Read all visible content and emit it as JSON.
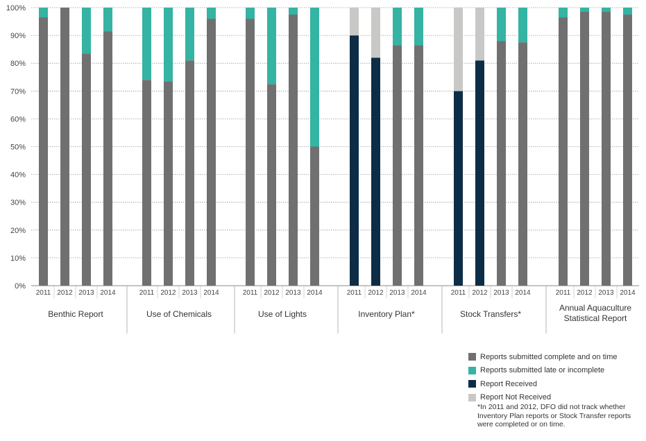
{
  "chart_data": {
    "type": "bar",
    "stacked": true,
    "title": "",
    "xlabel": "",
    "ylabel": "",
    "ylim": [
      0,
      100
    ],
    "yticks": [
      "0%",
      "10%",
      "20%",
      "30%",
      "40%",
      "50%",
      "60%",
      "70%",
      "80%",
      "90%",
      "100%"
    ],
    "grid": true,
    "legend_position": "bottom-right",
    "groups": [
      {
        "name": "Benthic Report",
        "name_lines": [
          "Benthic Report"
        ],
        "years": [
          "2011",
          "2012",
          "2013",
          "2014"
        ],
        "stacks": [
          [
            {
              "series": "complete",
              "value": 96.5
            },
            {
              "series": "late",
              "value": 3.5
            }
          ],
          [
            {
              "series": "complete",
              "value": 100
            }
          ],
          [
            {
              "series": "complete",
              "value": 83.5
            },
            {
              "series": "late",
              "value": 16.5
            }
          ],
          [
            {
              "series": "complete",
              "value": 91.5
            },
            {
              "series": "late",
              "value": 8.5
            }
          ]
        ]
      },
      {
        "name": "Use of Chemicals",
        "name_lines": [
          "Use of Chemicals"
        ],
        "years": [
          "2011",
          "2012",
          "2013",
          "2014"
        ],
        "stacks": [
          [
            {
              "series": "complete",
              "value": 74
            },
            {
              "series": "late",
              "value": 26
            }
          ],
          [
            {
              "series": "complete",
              "value": 73.5
            },
            {
              "series": "late",
              "value": 26.5
            }
          ],
          [
            {
              "series": "complete",
              "value": 81
            },
            {
              "series": "late",
              "value": 19
            }
          ],
          [
            {
              "series": "complete",
              "value": 96
            },
            {
              "series": "late",
              "value": 4
            }
          ]
        ]
      },
      {
        "name": "Use of Lights",
        "name_lines": [
          "Use of Lights"
        ],
        "years": [
          "2011",
          "2012",
          "2013",
          "2014"
        ],
        "stacks": [
          [
            {
              "series": "complete",
              "value": 96
            },
            {
              "series": "late",
              "value": 4
            }
          ],
          [
            {
              "series": "complete",
              "value": 72.5
            },
            {
              "series": "late",
              "value": 27.5
            }
          ],
          [
            {
              "series": "complete",
              "value": 97.5
            },
            {
              "series": "late",
              "value": 2.5
            }
          ],
          [
            {
              "series": "complete",
              "value": 50
            },
            {
              "series": "late",
              "value": 50
            }
          ]
        ]
      },
      {
        "name": "Inventory Plan*",
        "name_lines": [
          "Inventory Plan*"
        ],
        "years": [
          "2011",
          "2012",
          "2013",
          "2014"
        ],
        "stacks": [
          [
            {
              "series": "received",
              "value": 90
            },
            {
              "series": "not_received",
              "value": 10
            }
          ],
          [
            {
              "series": "received",
              "value": 82
            },
            {
              "series": "not_received",
              "value": 18
            }
          ],
          [
            {
              "series": "complete",
              "value": 86.5
            },
            {
              "series": "late",
              "value": 13.5
            }
          ],
          [
            {
              "series": "complete",
              "value": 86.5
            },
            {
              "series": "late",
              "value": 13.5
            }
          ]
        ]
      },
      {
        "name": "Stock Transfers*",
        "name_lines": [
          "Stock Transfers*"
        ],
        "years": [
          "2011",
          "2012",
          "2013",
          "2014"
        ],
        "stacks": [
          [
            {
              "series": "received",
              "value": 70
            },
            {
              "series": "not_received",
              "value": 30
            }
          ],
          [
            {
              "series": "received",
              "value": 81
            },
            {
              "series": "not_received",
              "value": 19
            }
          ],
          [
            {
              "series": "complete",
              "value": 88
            },
            {
              "series": "late",
              "value": 12
            }
          ],
          [
            {
              "series": "complete",
              "value": 87.5
            },
            {
              "series": "late",
              "value": 12.5
            }
          ]
        ]
      },
      {
        "name": "Annual Aquaculture Statistical Report",
        "name_lines": [
          "Annual Aquaculture",
          "Statistical Report"
        ],
        "years": [
          "2011",
          "2012",
          "2013",
          "2014"
        ],
        "stacks": [
          [
            {
              "series": "complete",
              "value": 96.5
            },
            {
              "series": "late",
              "value": 3.5
            }
          ],
          [
            {
              "series": "complete",
              "value": 98.5
            },
            {
              "series": "late",
              "value": 1.5
            }
          ],
          [
            {
              "series": "complete",
              "value": 98.5
            },
            {
              "series": "late",
              "value": 1.5
            }
          ],
          [
            {
              "series": "complete",
              "value": 97.5
            },
            {
              "series": "late",
              "value": 2.5
            }
          ]
        ]
      }
    ],
    "series": [
      {
        "id": "complete",
        "name": "Reports submitted complete and on time",
        "color": "#707070"
      },
      {
        "id": "late",
        "name": "Reports submitted late or incomplete",
        "color": "#35b3a3"
      },
      {
        "id": "received",
        "name": "Report Received",
        "color": "#0d2d47"
      },
      {
        "id": "not_received",
        "name": "Report Not Received",
        "color": "#c8c8c6"
      }
    ],
    "footnote": "*In 2011 and 2012, DFO did not track whether Inventory Plan reports or Stock Transfer reports were completed or on time."
  }
}
